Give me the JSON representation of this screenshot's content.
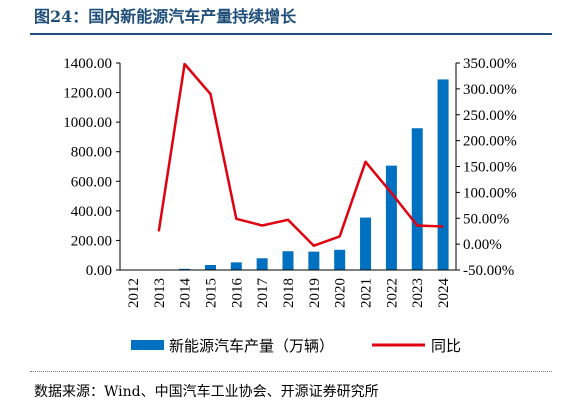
{
  "figure": {
    "title": "图24：国内新能源汽车产量持续增长",
    "source": "数据来源：Wind、中国汽车工业协会、开源证券研究所"
  },
  "chart_data": {
    "type": "bar+line",
    "categories": [
      "2012",
      "2013",
      "2014",
      "2015",
      "2016",
      "2017",
      "2018",
      "2019",
      "2020",
      "2021",
      "2022",
      "2023",
      "2024"
    ],
    "series": [
      {
        "name": "新能源汽车产量（万辆）",
        "type": "bar",
        "axis": "left",
        "color": "#0070c0",
        "values": [
          1.3,
          1.8,
          7.9,
          34.0,
          51.7,
          79.4,
          127.0,
          124.2,
          136.6,
          354.5,
          705.8,
          958.7,
          1288.8
        ]
      },
      {
        "name": "同比",
        "type": "line",
        "axis": "right",
        "color": "#e0000f",
        "values": [
          null,
          25.0,
          348.0,
          290.0,
          49.0,
          36.0,
          47.0,
          -3.0,
          15.0,
          159.0,
          99.0,
          36.0,
          34.0
        ]
      }
    ],
    "left_axis": {
      "min": 0,
      "max": 1400,
      "step": 200,
      "tick_labels": [
        "0.00",
        "200.00",
        "400.00",
        "600.00",
        "800.00",
        "1000.00",
        "1200.00",
        "1400.00"
      ]
    },
    "right_axis": {
      "min": -50,
      "max": 350,
      "step": 50,
      "tick_labels": [
        "-50.00%",
        "0.00%",
        "50.00%",
        "100.00%",
        "150.00%",
        "200.00%",
        "250.00%",
        "300.00%",
        "350.00%"
      ]
    },
    "legend_position": "bottom",
    "grid": false,
    "x_label_rotation": -90
  }
}
